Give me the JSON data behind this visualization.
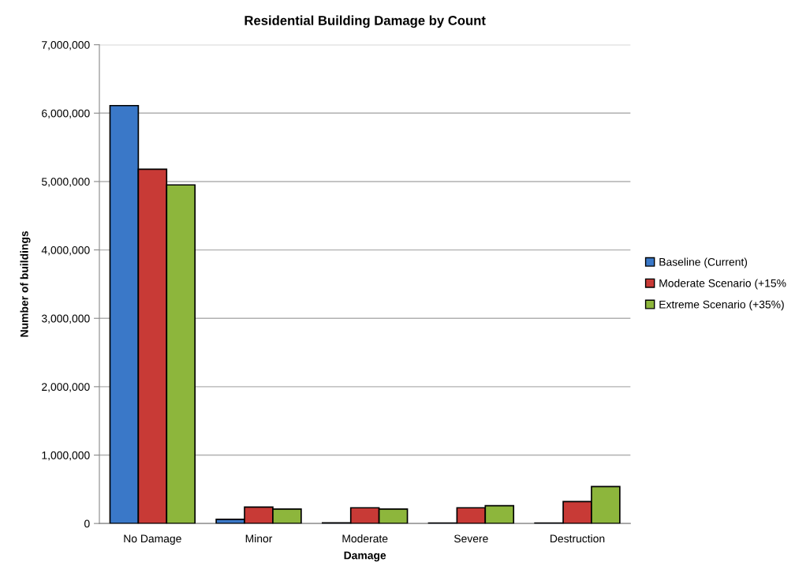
{
  "chart_data": {
    "type": "bar",
    "title": "Residential Building Damage by Count",
    "xlabel": "Damage",
    "ylabel": "Number of buildings",
    "categories": [
      "No Damage",
      "Minor",
      "Moderate",
      "Severe",
      "Destruction"
    ],
    "series": [
      {
        "name": "Baseline (Current)",
        "color": "#3a78c8",
        "values": [
          6110000,
          60000,
          10000,
          5000,
          5000
        ]
      },
      {
        "name": "Moderate Scenario (+15%",
        "color": "#c83a36",
        "values": [
          5180000,
          240000,
          230000,
          230000,
          320000
        ]
      },
      {
        "name": "Extreme Scenario (+35%)",
        "color": "#8db63c",
        "values": [
          4950000,
          210000,
          210000,
          260000,
          540000
        ]
      }
    ],
    "ylim": [
      0,
      7000000
    ],
    "yticks": [
      {
        "value": 0,
        "label": "0"
      },
      {
        "value": 1000000,
        "label": "1,000,000"
      },
      {
        "value": 2000000,
        "label": "2,000,000"
      },
      {
        "value": 3000000,
        "label": "3,000,000"
      },
      {
        "value": 4000000,
        "label": "4,000,000"
      },
      {
        "value": 5000000,
        "label": "5,000,000"
      },
      {
        "value": 6000000,
        "label": "6,000,000"
      },
      {
        "value": 7000000,
        "label": "7,000,000"
      }
    ],
    "grid": "y",
    "legend": "right"
  }
}
